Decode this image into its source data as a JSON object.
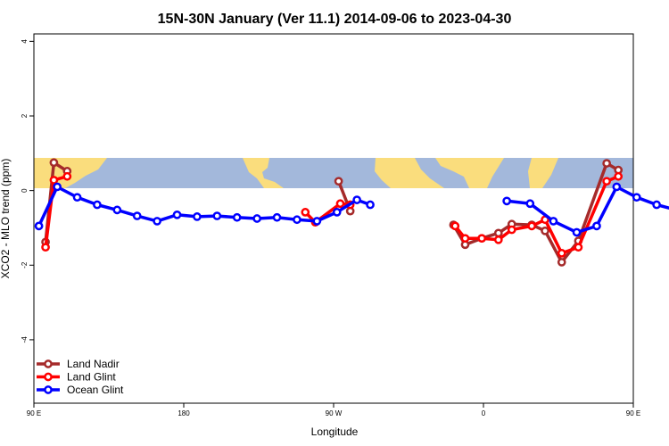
{
  "chart_data": {
    "type": "line",
    "title": "15N-30N January (Ver 11.1)   2014-09-06 to 2023-04-30",
    "xlabel": "Longitude",
    "ylabel": "XCO2 - MLO trend (ppm)",
    "xlim": [
      90,
      450
    ],
    "ylim": [
      -5.7,
      4.2
    ],
    "x_ticks": [
      {
        "value": 90,
        "label": "90 E"
      },
      {
        "value": 180,
        "label": "180"
      },
      {
        "value": 270,
        "label": "90 W"
      },
      {
        "value": 360,
        "label": "0"
      },
      {
        "value": 450,
        "label": "90 E"
      },
      {
        "value": 540,
        "label": "180"
      }
    ],
    "y_ticks": [
      {
        "value": 4,
        "label": "4"
      },
      {
        "value": 2,
        "label": "2"
      },
      {
        "value": 0,
        "label": "0"
      },
      {
        "value": -2,
        "label": "-2"
      },
      {
        "value": -4,
        "label": "-4"
      }
    ],
    "legend_position": "bottom-left",
    "map_band": {
      "ocean_color": "#a3b8db",
      "land_color": "#fadd7d"
    },
    "series": [
      {
        "name": "Land Nadir",
        "color": "#a52a2a",
        "segments": [
          [
            [
              97,
              -1.38
            ],
            [
              102,
              0.75
            ],
            [
              110,
              0.52
            ]
          ],
          [
            [
              273,
              0.25
            ],
            [
              280,
              -0.55
            ]
          ],
          [
            [
              342,
              -0.92
            ],
            [
              349,
              -1.45
            ],
            [
              359,
              -1.28
            ],
            [
              369,
              -1.14
            ],
            [
              377,
              -0.9
            ],
            [
              389,
              -0.92
            ],
            [
              397,
              -1.08
            ],
            [
              407,
              -1.92
            ],
            [
              417,
              -1.35
            ],
            [
              434,
              0.73
            ],
            [
              441,
              0.55
            ]
          ]
        ]
      },
      {
        "name": "Land Glint",
        "color": "#ff0000",
        "segments": [
          [
            [
              97,
              -1.52
            ],
            [
              102,
              0.28
            ],
            [
              110,
              0.38
            ]
          ],
          [
            [
              253,
              -0.58
            ],
            [
              259,
              -0.85
            ],
            [
              274,
              -0.35
            ],
            [
              280,
              -0.38
            ]
          ],
          [
            [
              343,
              -0.95
            ],
            [
              349,
              -1.28
            ],
            [
              359,
              -1.28
            ],
            [
              369,
              -1.32
            ],
            [
              377,
              -1.05
            ],
            [
              389,
              -0.95
            ],
            [
              397,
              -0.78
            ],
            [
              407,
              -1.68
            ],
            [
              417,
              -1.52
            ],
            [
              434,
              0.25
            ],
            [
              441,
              0.38
            ]
          ]
        ]
      },
      {
        "name": "Ocean Glint",
        "color": "#0000ff",
        "segments": [
          [
            [
              93,
              -0.95
            ],
            [
              104,
              0.1
            ],
            [
              116,
              -0.18
            ],
            [
              128,
              -0.38
            ],
            [
              140,
              -0.52
            ],
            [
              152,
              -0.68
            ],
            [
              164,
              -0.82
            ],
            [
              176,
              -0.65
            ],
            [
              188,
              -0.7
            ],
            [
              200,
              -0.68
            ],
            [
              212,
              -0.72
            ],
            [
              224,
              -0.75
            ],
            [
              236,
              -0.72
            ],
            [
              248,
              -0.78
            ],
            [
              260,
              -0.82
            ],
            [
              272,
              -0.58
            ],
            [
              284,
              -0.25
            ],
            [
              292,
              -0.38
            ]
          ],
          [
            [
              374,
              -0.28
            ],
            [
              388,
              -0.35
            ],
            [
              402,
              -0.82
            ],
            [
              416,
              -1.12
            ],
            [
              428,
              -0.95
            ],
            [
              440,
              0.1
            ],
            [
              452,
              -0.18
            ],
            [
              464,
              -0.38
            ],
            [
              476,
              -0.52
            ],
            [
              488,
              -0.68
            ]
          ]
        ]
      }
    ]
  }
}
